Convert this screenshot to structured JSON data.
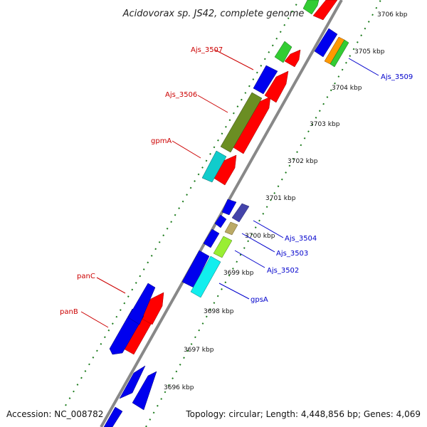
{
  "title": "Acidovorax sp. JS42, complete genome",
  "footer": {
    "accession": "Accession: NC_008782",
    "summary": "Topology: circular; Length: 4,448,856 bp; Genes: 4,069"
  },
  "colors": {
    "label_forward": "#cc0000",
    "label_reverse": "#0000cc",
    "backbone": "#888888",
    "tick": "#1a7a1a"
  },
  "kbp_ticks": [
    "3696 kbp",
    "3697 kbp",
    "3698 kbp",
    "3699 kbp",
    "3700 kbp",
    "3701 kbp",
    "3702 kbp",
    "3703 kbp",
    "3704 kbp",
    "3705 kbp",
    "3706 kbp"
  ],
  "gene_labels_left": [
    "Ajs_3507",
    "Ajs_3506",
    "gpmA",
    "panC",
    "panB"
  ],
  "gene_labels_right": [
    "Ajs_3509",
    "Ajs_3504",
    "Ajs_3503",
    "Ajs_3502",
    "gpsA"
  ]
}
